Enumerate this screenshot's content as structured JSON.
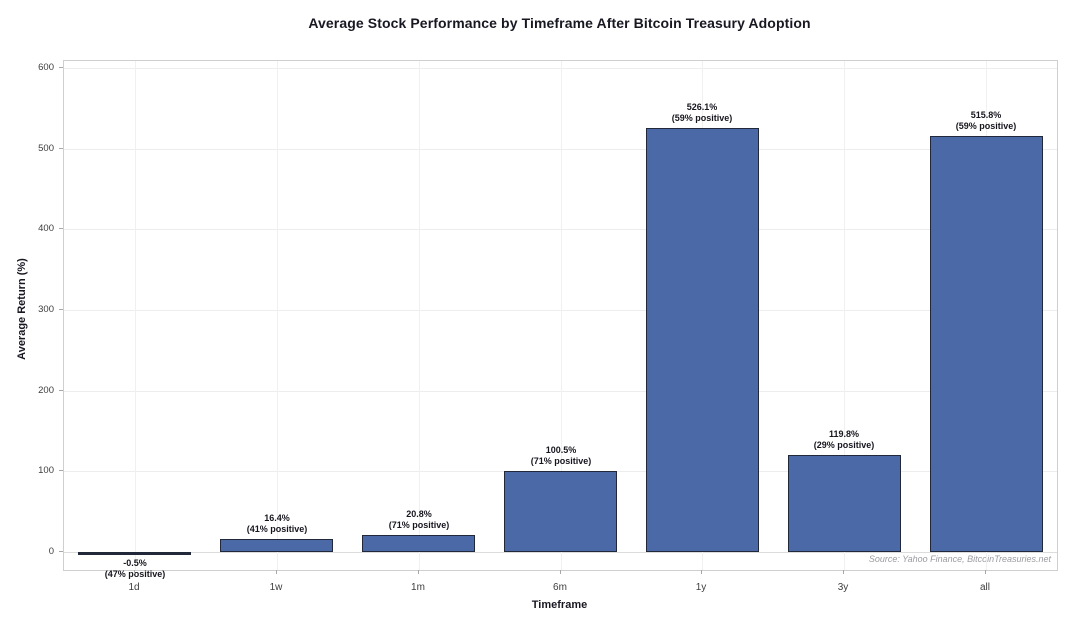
{
  "chart_data": {
    "type": "bar",
    "title": "Average Stock Performance by Timeframe After Bitcoin Treasury Adoption",
    "xlabel": "Timeframe",
    "ylabel": "Average Return (%)",
    "categories": [
      "1d",
      "1w",
      "1m",
      "6m",
      "1y",
      "3y",
      "all"
    ],
    "values": [
      -0.5,
      16.4,
      20.8,
      100.5,
      526.1,
      119.8,
      515.8
    ],
    "positive_share_pct": [
      47,
      41,
      71,
      71,
      59,
      29,
      59
    ],
    "bar_annotations": [
      [
        "-0.5%",
        "(47% positive)"
      ],
      [
        "16.4%",
        "(41% positive)"
      ],
      [
        "20.8%",
        "(71% positive)"
      ],
      [
        "100.5%",
        "(71% positive)"
      ],
      [
        "526.1%",
        "(59% positive)"
      ],
      [
        "119.8%",
        "(29% positive)"
      ],
      [
        "515.8%",
        "(59% positive)"
      ]
    ],
    "yticks": [
      0,
      100,
      200,
      300,
      400,
      500,
      600
    ],
    "ylim": [
      -25,
      609
    ],
    "grid": true,
    "legend": "none",
    "bar_color": "#4c69a7",
    "bar_edge_color": "#20283a",
    "source": "Source: Yahoo Finance, BitcoinTreasuries.net"
  }
}
